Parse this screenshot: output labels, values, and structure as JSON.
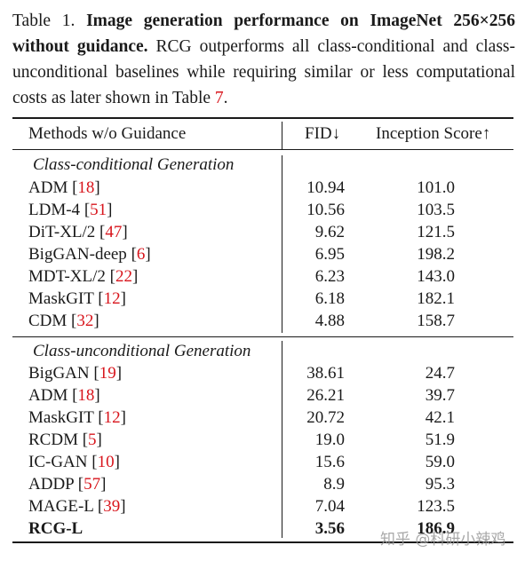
{
  "caption": {
    "label": "Table 1.",
    "bold_text": "Image generation performance on ImageNet 256×256 without guidance.",
    "text": "RCG outperforms all class-conditional and class-unconditional baselines while requiring similar or less computational costs as later shown in Table",
    "ref": "7",
    "end": "."
  },
  "table": {
    "headers": [
      "Methods w/o Guidance",
      "FID↓",
      "Inception Score↑"
    ],
    "sections": [
      {
        "title": "Class-conditional Generation",
        "rows": [
          {
            "method": "ADM",
            "ref": "18",
            "fid": "10.94",
            "is": "101.0"
          },
          {
            "method": "LDM-4",
            "ref": "51",
            "fid": "10.56",
            "is": "103.5"
          },
          {
            "method": "DiT-XL/2",
            "ref": "47",
            "fid": "9.62",
            "is": "121.5"
          },
          {
            "method": "BigGAN-deep",
            "ref": "6",
            "fid": "6.95",
            "is": "198.2"
          },
          {
            "method": "MDT-XL/2",
            "ref": "22",
            "fid": "6.23",
            "is": "143.0"
          },
          {
            "method": "MaskGIT",
            "ref": "12",
            "fid": "6.18",
            "is": "182.1"
          },
          {
            "method": "CDM",
            "ref": "32",
            "fid": "4.88",
            "is": "158.7"
          }
        ]
      },
      {
        "title": "Class-unconditional Generation",
        "rows": [
          {
            "method": "BigGAN",
            "ref": "19",
            "fid": "38.61",
            "is": "24.7"
          },
          {
            "method": "ADM",
            "ref": "18",
            "fid": "26.21",
            "is": "39.7"
          },
          {
            "method": "MaskGIT",
            "ref": "12",
            "fid": "20.72",
            "is": "42.1"
          },
          {
            "method": "RCDM",
            "ref": "5",
            "fid": "19.0",
            "is": "51.9"
          },
          {
            "method": "IC-GAN",
            "ref": "10",
            "fid": "15.6",
            "is": "59.0"
          },
          {
            "method": "ADDP",
            "ref": "57",
            "fid": "8.9",
            "is": "95.3"
          },
          {
            "method": "MAGE-L",
            "ref": "39",
            "fid": "7.04",
            "is": "123.5"
          },
          {
            "method": "RCG-L",
            "ref": "",
            "fid": "3.56",
            "is": "186.9",
            "bold": true
          }
        ]
      }
    ]
  },
  "watermark": "知乎 @科研小辣鸡",
  "colors": {
    "text": "#1a1a1a",
    "ref": "#d8151c",
    "watermark": "#9a9a9a"
  }
}
